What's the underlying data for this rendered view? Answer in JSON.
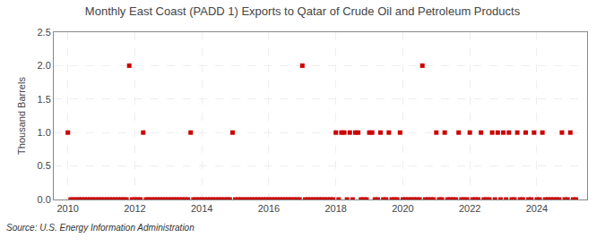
{
  "chart_data": {
    "type": "scatter",
    "title": "Monthly East Coast (PADD 1) Exports to Qatar of Crude Oil and Petroleum Products",
    "ylabel": "Thousand Barrels",
    "annotations": [
      "Source: U.S. Energy Information Administration"
    ],
    "color": "#cc0000",
    "marker": "square",
    "grid": true,
    "xlim": [
      2009.58,
      2025.5
    ],
    "xticks": [
      2010,
      2012,
      2014,
      2016,
      2018,
      2020,
      2022,
      2024
    ],
    "ylim": [
      0.0,
      2.5
    ],
    "yticks": [
      {
        "value": 0.0,
        "label": "0.0"
      },
      0.5,
      {
        "value": 1.0,
        "label": "1.0"
      },
      1.5,
      {
        "value": 2.0,
        "label": "2.0"
      },
      2.5
    ],
    "x": [
      2010.0,
      2010.0833333333333,
      2010.1666666666667,
      2010.25,
      2010.3333333333333,
      2010.4166666666667,
      2010.5,
      2010.5833333333333,
      2010.6666666666667,
      2010.75,
      2010.8333333333333,
      2010.9166666666667,
      2011.0,
      2011.0833333333333,
      2011.1666666666667,
      2011.25,
      2011.3333333333333,
      2011.4166666666667,
      2011.5,
      2011.5833333333333,
      2011.6666666666667,
      2011.75,
      2011.8333333333333,
      2011.9166666666667,
      2012.0,
      2012.0833333333333,
      2012.1666666666667,
      2012.25,
      2012.3333333333333,
      2012.4166666666667,
      2012.5,
      2012.5833333333333,
      2012.6666666666667,
      2012.75,
      2012.8333333333333,
      2012.9166666666667,
      2013.0,
      2013.0833333333333,
      2013.1666666666667,
      2013.25,
      2013.3333333333333,
      2013.4166666666667,
      2013.5,
      2013.5833333333333,
      2013.6666666666667,
      2013.75,
      2013.8333333333333,
      2013.9166666666667,
      2014.0,
      2014.0833333333333,
      2014.1666666666667,
      2014.25,
      2014.3333333333333,
      2014.4166666666667,
      2014.5,
      2014.5833333333333,
      2014.6666666666667,
      2014.75,
      2014.8333333333333,
      2014.9166666666667,
      2015.0,
      2015.0833333333333,
      2015.1666666666667,
      2015.25,
      2015.3333333333333,
      2015.4166666666667,
      2015.5,
      2015.5833333333333,
      2015.6666666666667,
      2015.75,
      2015.8333333333333,
      2015.9166666666667,
      2016.0,
      2016.0833333333333,
      2016.1666666666667,
      2016.25,
      2016.3333333333333,
      2016.4166666666667,
      2016.5,
      2016.5833333333333,
      2016.6666666666667,
      2016.75,
      2016.8333333333333,
      2016.9166666666667,
      2017.0,
      2017.0833333333333,
      2017.1666666666667,
      2017.25,
      2017.3333333333333,
      2017.4166666666667,
      2017.5,
      2017.5833333333333,
      2017.6666666666667,
      2017.75,
      2017.8333333333333,
      2017.9166666666667,
      2018.0,
      2018.0833333333333,
      2018.1666666666667,
      2018.25,
      2018.3333333333333,
      2018.4166666666667,
      2018.5,
      2018.5833333333333,
      2018.6666666666667,
      2018.75,
      2018.8333333333333,
      2018.9166666666667,
      2019.0,
      2019.0833333333333,
      2019.1666666666667,
      2019.25,
      2019.3333333333333,
      2019.4166666666667,
      2019.5,
      2019.5833333333333,
      2019.6666666666667,
      2019.75,
      2019.8333333333333,
      2019.9166666666667,
      2020.0,
      2020.0833333333333,
      2020.1666666666667,
      2020.25,
      2020.3333333333333,
      2020.4166666666667,
      2020.5,
      2020.5833333333333,
      2020.6666666666667,
      2020.75,
      2020.8333333333333,
      2020.9166666666667,
      2021.0,
      2021.0833333333333,
      2021.1666666666667,
      2021.25,
      2021.3333333333333,
      2021.4166666666667,
      2021.5,
      2021.5833333333333,
      2021.6666666666667,
      2021.75,
      2021.8333333333333,
      2021.9166666666667,
      2022.0,
      2022.0833333333333,
      2022.1666666666667,
      2022.25,
      2022.3333333333333,
      2022.4166666666667,
      2022.5,
      2022.5833333333333,
      2022.6666666666667,
      2022.75,
      2022.8333333333333,
      2022.9166666666667,
      2023.0,
      2023.0833333333333,
      2023.1666666666667,
      2023.25,
      2023.3333333333333,
      2023.4166666666667,
      2023.5,
      2023.5833333333333,
      2023.6666666666667,
      2023.75,
      2023.8333333333333,
      2023.9166666666667,
      2024.0,
      2024.0833333333333,
      2024.1666666666667,
      2024.25,
      2024.3333333333333,
      2024.4166666666667,
      2024.5,
      2024.5833333333333,
      2024.6666666666667,
      2024.75,
      2024.8333333333333,
      2024.9166666666667,
      2025.0,
      2025.0833333333333,
      2025.1666666666667
    ],
    "values": [
      1,
      0,
      0,
      0,
      0,
      0,
      0,
      0,
      0,
      0,
      0,
      0,
      0,
      0,
      0,
      0,
      0,
      0,
      0,
      0,
      0,
      0,
      2,
      0,
      0,
      0,
      0,
      1,
      0,
      0,
      0,
      0,
      0,
      0,
      0,
      0,
      0,
      0,
      0,
      0,
      0,
      0,
      0,
      0,
      1,
      0,
      0,
      0,
      0,
      0,
      0,
      0,
      0,
      0,
      0,
      0,
      0,
      0,
      0,
      1,
      0,
      0,
      0,
      0,
      0,
      0,
      0,
      0,
      0,
      0,
      0,
      0,
      0,
      0,
      0,
      0,
      0,
      0,
      0,
      0,
      0,
      0,
      0,
      0,
      2,
      0,
      0,
      0,
      0,
      0,
      0,
      0,
      0,
      0,
      0,
      0,
      1,
      0,
      1,
      1,
      0,
      1,
      0,
      1,
      1,
      0,
      0,
      0,
      1,
      1,
      0,
      0,
      1,
      0,
      0,
      1,
      0,
      0,
      0,
      1,
      0,
      0,
      0,
      0,
      0,
      0,
      0,
      2,
      0,
      0,
      0,
      0,
      1,
      0,
      0,
      1,
      0,
      0,
      0,
      0,
      1,
      0,
      0,
      0,
      1,
      0,
      0,
      0,
      1,
      0,
      0,
      0,
      1,
      0,
      1,
      0,
      1,
      0,
      1,
      0,
      0,
      1,
      0,
      0,
      1,
      0,
      0,
      1,
      0,
      0,
      1,
      0,
      0,
      0,
      0,
      0,
      0,
      1,
      0,
      0,
      1,
      0,
      0
    ]
  }
}
